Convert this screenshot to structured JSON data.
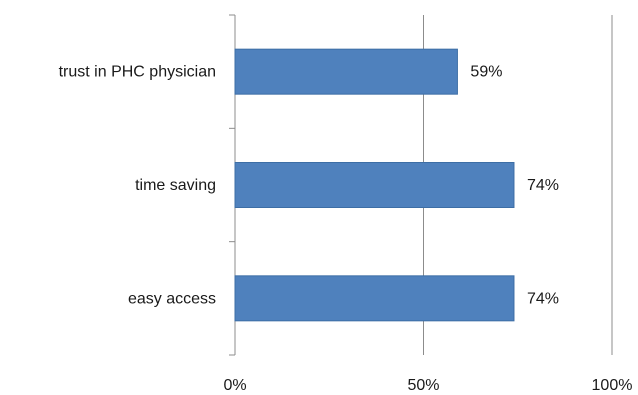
{
  "chart_data": {
    "type": "bar",
    "orientation": "horizontal",
    "title": "",
    "xlabel": "",
    "ylabel": "",
    "categories": [
      "trust in PHC physician",
      "time saving",
      "easy access"
    ],
    "values": [
      59,
      74,
      74
    ],
    "data_labels": [
      "59%",
      "74%",
      "74%"
    ],
    "xlim": [
      0,
      100
    ],
    "x_ticks": [
      0,
      50,
      100
    ],
    "x_tick_labels": [
      "0%",
      "50%",
      "100%"
    ],
    "grid": "vertical",
    "legend": "none",
    "bar_color": "#4f81bd",
    "bar_edge_color": "#3d6ea5",
    "grid_color": "#8c8c8c"
  }
}
